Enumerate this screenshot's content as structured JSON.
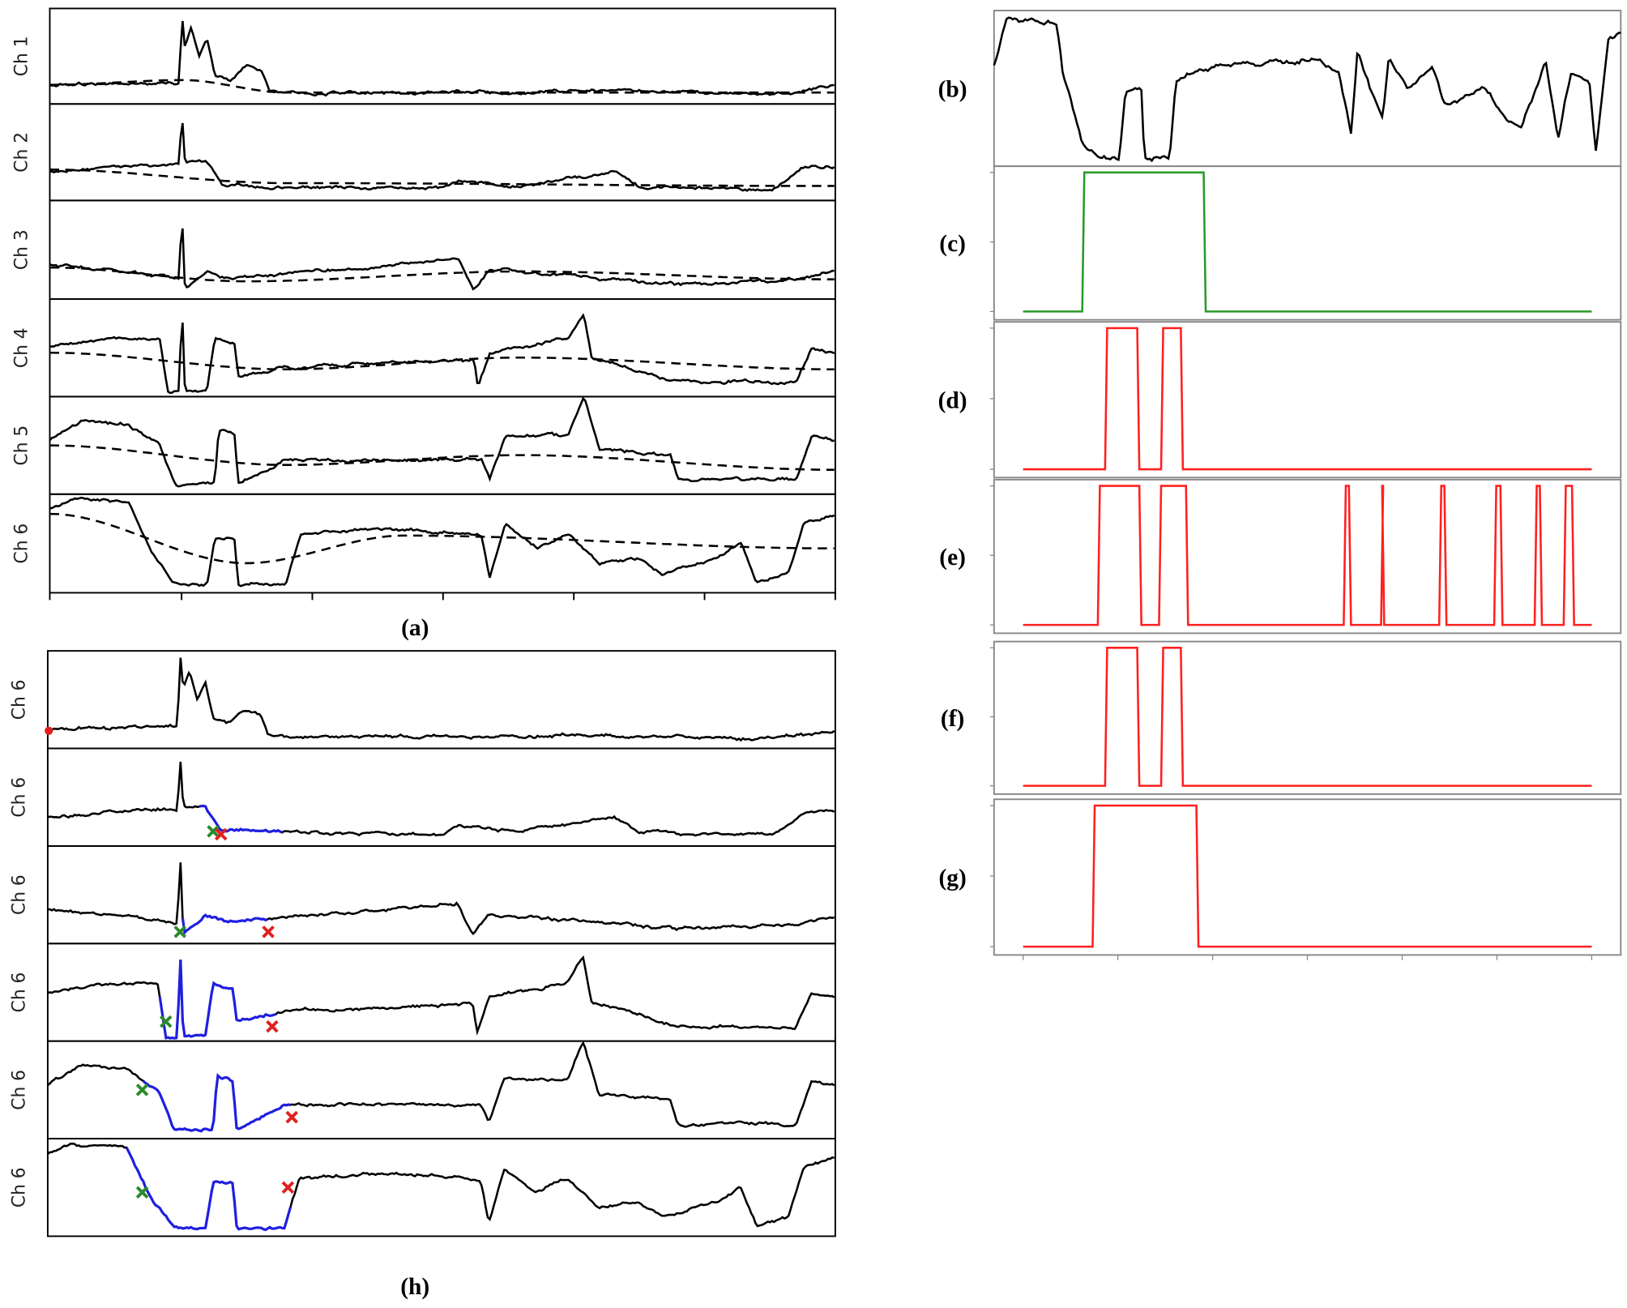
{
  "panel_a": {
    "label": "(a)",
    "channels": [
      "Ch 1",
      "Ch 2",
      "Ch 3",
      "Ch 4",
      "Ch 5",
      "Ch 6"
    ]
  },
  "panel_h": {
    "label": "(h)",
    "channels": [
      "Ch 6",
      "Ch 6",
      "Ch 6",
      "Ch 6",
      "Ch 6",
      "Ch 6"
    ]
  },
  "right_panels": [
    "(b)",
    "(c)",
    "(d)",
    "(e)",
    "(f)",
    "(g)"
  ]
}
